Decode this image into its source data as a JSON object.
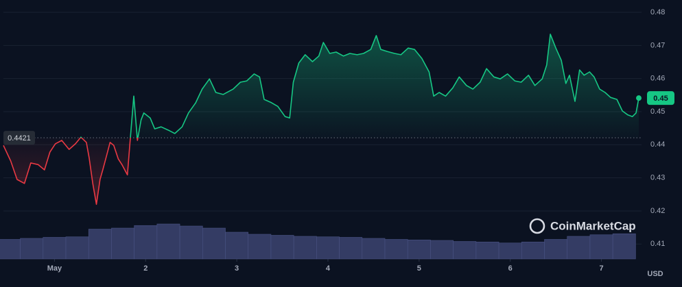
{
  "chart_data": {
    "type": "line",
    "x": [
      0.44,
      0.52,
      0.59,
      0.67,
      0.74,
      0.82,
      0.89,
      0.95,
      1.01,
      1.08,
      1.16,
      1.23,
      1.29,
      1.35,
      1.38,
      1.42,
      1.46,
      1.5,
      1.53,
      1.57,
      1.61,
      1.65,
      1.7,
      1.74,
      1.8,
      1.83,
      1.87,
      1.91,
      1.95,
      1.98,
      2.05,
      2.1,
      2.17,
      2.25,
      2.32,
      2.4,
      2.47,
      2.55,
      2.62,
      2.7,
      2.77,
      2.85,
      2.96,
      3.04,
      3.11,
      3.19,
      3.25,
      3.3,
      3.38,
      3.45,
      3.53,
      3.58,
      3.62,
      3.68,
      3.75,
      3.83,
      3.9,
      3.95,
      4.02,
      4.09,
      4.17,
      4.24,
      4.32,
      4.39,
      4.47,
      4.53,
      4.58,
      4.65,
      4.73,
      4.8,
      4.88,
      4.95,
      5.03,
      5.11,
      5.16,
      5.22,
      5.29,
      5.37,
      5.44,
      5.52,
      5.59,
      5.67,
      5.74,
      5.82,
      5.89,
      5.97,
      6.05,
      6.12,
      6.2,
      6.27,
      6.35,
      6.4,
      6.44,
      6.5,
      6.56,
      6.61,
      6.65,
      6.71,
      6.76,
      6.81,
      6.87,
      6.92,
      6.98,
      7.04,
      7.1,
      7.17,
      7.23,
      7.29,
      7.34,
      7.38,
      7.41
    ],
    "values": [
      0.4398,
      0.4351,
      0.4295,
      0.4283,
      0.4345,
      0.434,
      0.4324,
      0.4378,
      0.4403,
      0.4413,
      0.4386,
      0.4403,
      0.4423,
      0.4407,
      0.4361,
      0.4283,
      0.422,
      0.4295,
      0.4324,
      0.4365,
      0.4407,
      0.4398,
      0.4357,
      0.434,
      0.4309,
      0.4413,
      0.4547,
      0.4413,
      0.4475,
      0.4496,
      0.4481,
      0.4448,
      0.4454,
      0.4444,
      0.4434,
      0.4454,
      0.4496,
      0.4527,
      0.4568,
      0.4599,
      0.4558,
      0.4552,
      0.4568,
      0.4589,
      0.4593,
      0.4614,
      0.4605,
      0.4537,
      0.4527,
      0.4516,
      0.4485,
      0.4481,
      0.4589,
      0.4647,
      0.4672,
      0.4651,
      0.4668,
      0.4709,
      0.4676,
      0.468,
      0.4668,
      0.4676,
      0.4672,
      0.4676,
      0.4688,
      0.473,
      0.4688,
      0.4682,
      0.4676,
      0.4672,
      0.4692,
      0.4688,
      0.4661,
      0.462,
      0.4547,
      0.4558,
      0.4547,
      0.4572,
      0.4605,
      0.4579,
      0.4568,
      0.4589,
      0.463,
      0.4605,
      0.4599,
      0.4614,
      0.4593,
      0.4589,
      0.461,
      0.4579,
      0.4599,
      0.4641,
      0.4734,
      0.4692,
      0.4655,
      0.4585,
      0.461,
      0.4531,
      0.4626,
      0.461,
      0.462,
      0.4605,
      0.4568,
      0.4558,
      0.4543,
      0.4537,
      0.4502,
      0.449,
      0.4485,
      0.4496,
      0.4541
    ],
    "baseline": 0.4421,
    "last_label": "0.45",
    "up_color": "#16c784",
    "down_color": "#ea3943",
    "volume": {
      "x": [
        0.5,
        0.75,
        1.0,
        1.25,
        1.5,
        1.75,
        2.0,
        2.25,
        2.5,
        2.75,
        3.0,
        3.25,
        3.5,
        3.75,
        4.0,
        4.25,
        4.5,
        4.75,
        5.0,
        5.25,
        5.5,
        5.75,
        6.0,
        6.25,
        6.5,
        6.75,
        7.0,
        7.25
      ],
      "values": [
        38,
        40,
        42,
        43,
        58,
        60,
        65,
        68,
        64,
        60,
        52,
        48,
        46,
        44,
        43,
        42,
        40,
        38,
        37,
        36,
        34,
        33,
        31,
        33,
        38,
        44,
        47,
        49
      ],
      "vlim": [
        0,
        100
      ],
      "color": "#343c64"
    },
    "xlim": [
      0.44,
      7.44
    ],
    "xticks": [
      {
        "value": 1,
        "label": "May"
      },
      2,
      3,
      4,
      5,
      6,
      7
    ],
    "ylim": [
      0.4055,
      0.4827
    ],
    "yticks": [
      0.41,
      0.42,
      0.43,
      0.44,
      0.45,
      0.46,
      0.47,
      0.48
    ],
    "y_unit": "USD",
    "grid": true,
    "watermark": "CoinMarketCap"
  }
}
